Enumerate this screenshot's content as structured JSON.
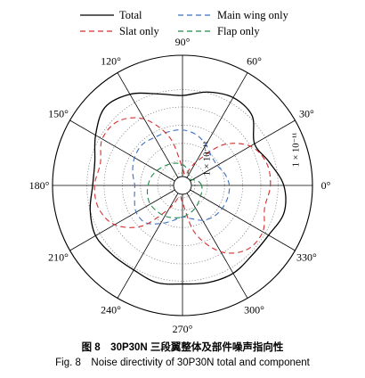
{
  "chart_data": {
    "type": "polar",
    "angle_unit": "degrees",
    "angle_ticks": [
      0,
      30,
      60,
      90,
      120,
      150,
      180,
      210,
      240,
      270,
      300,
      330
    ],
    "angle_tick_labels": [
      "0°",
      "30°",
      "60°",
      "90°",
      "120°",
      "150°",
      "180°",
      "210°",
      "240°",
      "270°",
      "300°",
      "330°"
    ],
    "radial_labels": [
      "1 × 10⁻¹¹",
      "1 × 10⁻¹²"
    ],
    "radial_label_angles": [
      90,
      90
    ],
    "rlim": [
      0,
      1.36
    ],
    "radial_rings": [
      0.13,
      0.26,
      0.44,
      0.63,
      0.82,
      1.0
    ],
    "grid": true,
    "legend_position": "top",
    "series": [
      {
        "name": "Total",
        "color": "#000000",
        "dash": "solid",
        "angles": [
          0,
          15,
          30,
          45,
          60,
          75,
          90,
          105,
          120,
          135,
          150,
          165,
          180,
          195,
          210,
          225,
          240,
          255,
          270,
          285,
          300,
          315,
          330,
          345
        ],
        "r": [
          1.06,
          0.94,
          0.87,
          1.03,
          1.06,
          1.01,
          0.94,
          0.99,
          1.1,
          1.15,
          1.05,
          0.95,
          0.94,
          1.0,
          1.05,
          1.03,
          1.02,
          1.05,
          1.03,
          1.05,
          1.06,
          1.03,
          1.04,
          1.1
        ]
      },
      {
        "name": "Main wing only",
        "color": "#3b6fc2",
        "dash": "dashed",
        "angles": [
          0,
          15,
          30,
          45,
          60,
          75,
          90,
          105,
          120,
          135,
          150,
          165,
          180,
          195,
          210,
          225,
          240,
          255,
          270,
          285,
          300,
          315,
          330,
          345
        ],
        "r": [
          0.49,
          0.46,
          0.42,
          0.43,
          0.49,
          0.55,
          0.58,
          0.58,
          0.58,
          0.6,
          0.58,
          0.54,
          0.5,
          0.52,
          0.56,
          0.55,
          0.46,
          0.38,
          0.33,
          0.36,
          0.42,
          0.46,
          0.48,
          0.49
        ]
      },
      {
        "name": "Slat only",
        "color": "#d62f2f",
        "dash": "dashed",
        "angles": [
          0,
          15,
          30,
          45,
          60,
          75,
          90,
          105,
          120,
          135,
          150,
          165,
          180,
          195,
          210,
          225,
          240,
          255,
          270,
          285,
          300,
          315,
          330,
          345
        ],
        "r": [
          0.92,
          0.91,
          0.82,
          0.6,
          0.28,
          0.12,
          0.18,
          0.52,
          0.8,
          0.95,
          0.97,
          0.89,
          0.92,
          0.91,
          0.82,
          0.6,
          0.28,
          0.12,
          0.18,
          0.52,
          0.8,
          0.95,
          0.97,
          0.89
        ]
      },
      {
        "name": "Flap only",
        "color": "#1f8a4a",
        "dash": "dashed",
        "angles": [
          0,
          15,
          30,
          45,
          60,
          75,
          90,
          105,
          120,
          135,
          150,
          165,
          180,
          195,
          210,
          225,
          240,
          255,
          270,
          285,
          300,
          315,
          330,
          345
        ],
        "r": [
          0.2,
          0.17,
          0.12,
          0.1,
          0.13,
          0.18,
          0.22,
          0.24,
          0.26,
          0.28,
          0.31,
          0.34,
          0.36,
          0.38,
          0.39,
          0.38,
          0.37,
          0.35,
          0.33,
          0.3,
          0.27,
          0.24,
          0.22,
          0.21
        ]
      }
    ]
  },
  "caption": {
    "chinese": "图 8　30P30N 三段翼整体及部件噪声指向性",
    "english": "Fig. 8　Noise directivity of 30P30N total and component"
  }
}
